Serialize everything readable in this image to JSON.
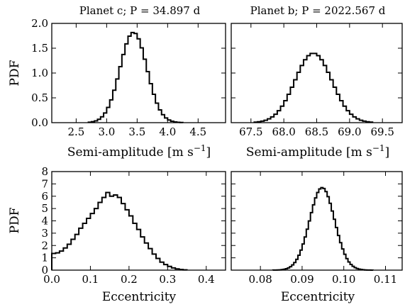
{
  "chart_data": [
    {
      "type": "histogram",
      "title": "Planet c; P = 34.897 d",
      "xlabel": "Semi-amplitude [m s",
      "xlabel_sup": "−1",
      "xlabel_end": "]",
      "ylabel": "PDF",
      "xlim": [
        2.1,
        4.95
      ],
      "ylim": [
        0,
        2.0
      ],
      "xticks": [
        "2.5",
        "3.0",
        "3.5",
        "4.0",
        "4.5"
      ],
      "xtick_values": [
        2.5,
        3.0,
        3.5,
        4.0,
        4.5
      ],
      "yticks": [
        "0.0",
        "0.5",
        "1.0",
        "1.5",
        "2.0"
      ],
      "ytick_values": [
        0.0,
        0.5,
        1.0,
        1.5,
        2.0
      ],
      "distribution": {
        "mean": 3.44,
        "sd": 0.22,
        "peak": 1.82,
        "bin_width": 0.05,
        "range": [
          2.7,
          4.25
        ]
      }
    },
    {
      "type": "histogram",
      "title": "Planet b; P = 2022.567 d",
      "xlabel": "Semi-amplitude [m s",
      "xlabel_sup": "−1",
      "xlabel_end": "]",
      "ylabel": "",
      "xlim": [
        67.2,
        69.8
      ],
      "ylim": [
        0,
        2.0
      ],
      "xticks": [
        "67.5",
        "68.0",
        "68.5",
        "69.0",
        "69.5"
      ],
      "xtick_values": [
        67.5,
        68.0,
        68.5,
        69.0,
        69.5
      ],
      "yticks": [],
      "ytick_values": [
        0.0,
        0.5,
        1.0,
        1.5,
        2.0
      ],
      "distribution": {
        "mean": 68.45,
        "sd": 0.28,
        "peak": 1.4,
        "bin_width": 0.05,
        "range": [
          67.55,
          69.35
        ]
      }
    },
    {
      "type": "histogram",
      "title": "",
      "xlabel": "Eccentricity",
      "xlabel_sup": "",
      "xlabel_end": "",
      "ylabel": "PDF",
      "xlim": [
        0.0,
        0.45
      ],
      "ylim": [
        0,
        8
      ],
      "xticks": [
        "0.0",
        "0.1",
        "0.2",
        "0.3",
        "0.4"
      ],
      "xtick_values": [
        0.0,
        0.1,
        0.2,
        0.3,
        0.4
      ],
      "yticks": [
        "0",
        "1",
        "2",
        "3",
        "4",
        "5",
        "6",
        "7",
        "8"
      ],
      "ytick_values": [
        0,
        1,
        2,
        3,
        4,
        5,
        6,
        7,
        8
      ],
      "bins": {
        "x": [
          0.0,
          0.01,
          0.02,
          0.03,
          0.04,
          0.05,
          0.06,
          0.07,
          0.08,
          0.09,
          0.1,
          0.11,
          0.12,
          0.13,
          0.14,
          0.15,
          0.16,
          0.17,
          0.18,
          0.19,
          0.2,
          0.21,
          0.22,
          0.23,
          0.24,
          0.25,
          0.26,
          0.27,
          0.28,
          0.29,
          0.3,
          0.31,
          0.32,
          0.33,
          0.34
        ],
        "y": [
          1.35,
          1.4,
          1.55,
          1.8,
          2.1,
          2.5,
          2.9,
          3.4,
          3.8,
          4.2,
          4.6,
          5.0,
          5.5,
          5.9,
          6.3,
          6.0,
          6.1,
          5.9,
          5.4,
          4.9,
          4.4,
          3.8,
          3.3,
          2.7,
          2.2,
          1.75,
          1.3,
          0.95,
          0.65,
          0.45,
          0.3,
          0.18,
          0.1,
          0.05,
          0.02
        ],
        "bin_width": 0.01
      }
    },
    {
      "type": "histogram",
      "title": "",
      "xlabel": "Eccentricity",
      "xlabel_sup": "",
      "xlabel_end": "",
      "ylabel": "",
      "xlim": [
        0.073,
        0.114
      ],
      "ylim": [
        0,
        8
      ],
      "xticks": [
        "0.08",
        "0.09",
        "0.10",
        "0.11"
      ],
      "xtick_values": [
        0.08,
        0.09,
        0.1,
        0.11
      ],
      "yticks": [],
      "ytick_values": [
        0,
        1,
        2,
        3,
        4,
        5,
        6,
        7,
        8
      ],
      "distribution": {
        "mean": 0.0948,
        "sd": 0.003,
        "peak": 6.7,
        "bin_width": 0.0005,
        "range": [
          0.083,
          0.107
        ]
      }
    }
  ]
}
